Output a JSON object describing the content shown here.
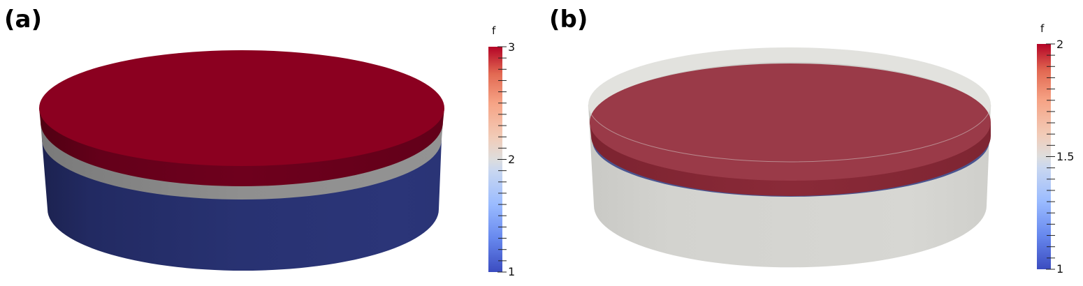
{
  "panels": [
    {
      "label": "(a)",
      "colorbar": {
        "title": "f",
        "ticks": [
          "3",
          "2",
          "1"
        ]
      }
    },
    {
      "label": "(b)",
      "colorbar": {
        "title": "f",
        "ticks": [
          "2",
          "1.5",
          "1"
        ]
      }
    }
  ],
  "colormap": "cool-to-warm",
  "colors": {
    "red": "#8b0020",
    "blue": "#283272",
    "grey": "#8f8f8f",
    "translucent_shell": "#d6d6d2"
  }
}
